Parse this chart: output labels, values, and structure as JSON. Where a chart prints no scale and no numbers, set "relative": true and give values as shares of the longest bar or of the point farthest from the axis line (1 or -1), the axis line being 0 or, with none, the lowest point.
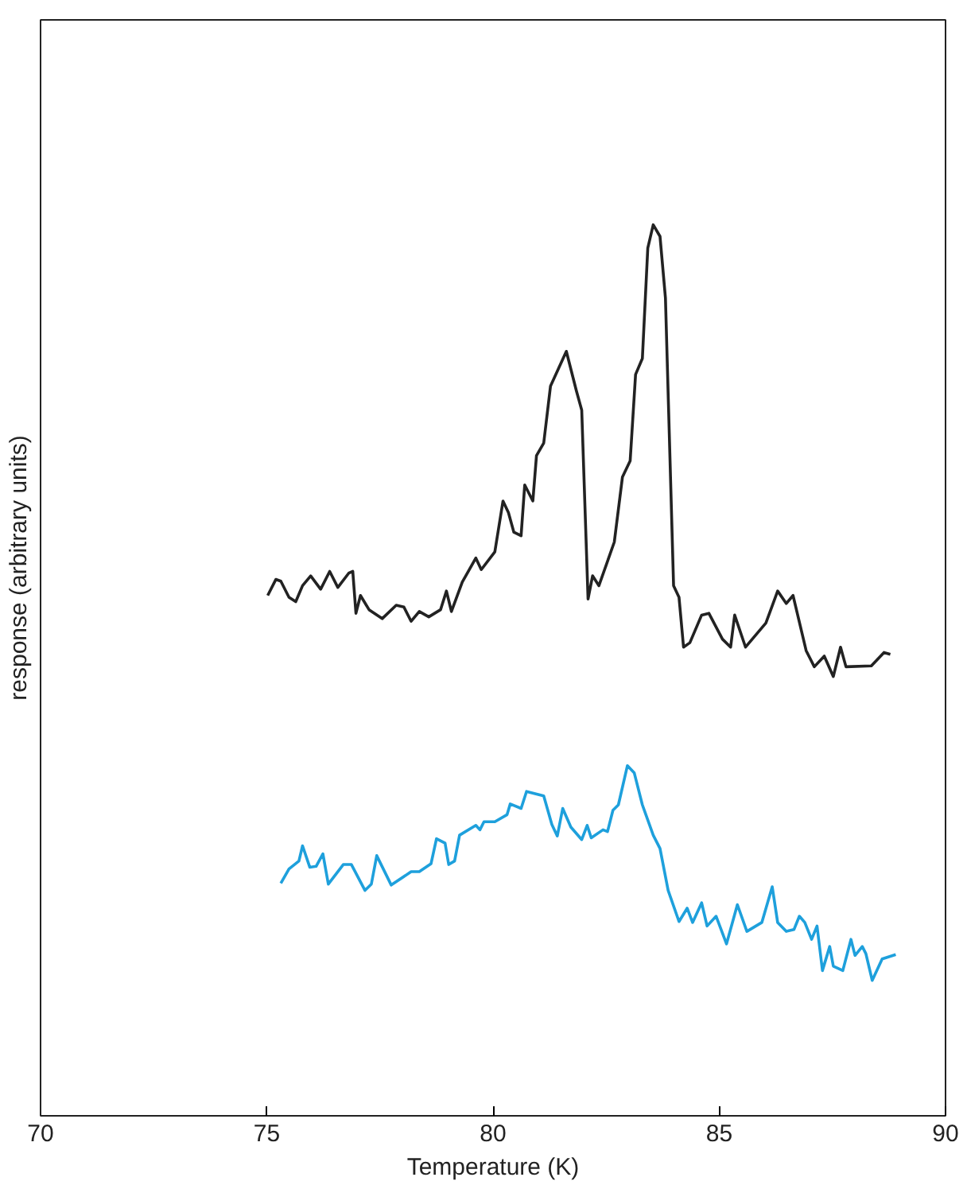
{
  "chart_data": {
    "type": "line",
    "relative": true,
    "xlabel": "Temperature (K)",
    "ylabel": "response (arbitrary units)",
    "xlim": [
      70,
      90
    ],
    "xticks": [
      70,
      75,
      80,
      85,
      90
    ],
    "grid": false,
    "marker": "none",
    "line_style": "solid",
    "series": [
      {
        "color": "#222222",
        "x": [
          75.02,
          75.2,
          75.31,
          75.49,
          75.64,
          75.79,
          75.97,
          76.19,
          76.39,
          76.57,
          76.81,
          76.9,
          76.97,
          77.07,
          77.26,
          77.55,
          77.86,
          78.03,
          78.19,
          78.37,
          78.58,
          78.84,
          78.97,
          79.08,
          79.32,
          79.62,
          79.74,
          80.04,
          80.22,
          80.34,
          80.46,
          80.62,
          80.7,
          80.88,
          80.96,
          81.12,
          81.27,
          81.62,
          81.84,
          81.96,
          82.1,
          82.2,
          82.34,
          82.68,
          82.86,
          83.03,
          83.15,
          83.3,
          83.42,
          83.54,
          83.69,
          83.81,
          83.99,
          84.11,
          84.21,
          84.35,
          84.61,
          84.77,
          85.07,
          85.25,
          85.34,
          85.58,
          86.03,
          86.29,
          86.48,
          86.63,
          86.92,
          87.1,
          87.32,
          87.52,
          87.68,
          87.8,
          88.36,
          88.64,
          88.78
        ],
        "values": [
          0.584,
          0.602,
          0.6,
          0.582,
          0.577,
          0.595,
          0.606,
          0.591,
          0.611,
          0.593,
          0.609,
          0.611,
          0.564,
          0.584,
          0.568,
          0.558,
          0.573,
          0.571,
          0.555,
          0.566,
          0.56,
          0.568,
          0.589,
          0.566,
          0.599,
          0.626,
          0.613,
          0.633,
          0.69,
          0.677,
          0.655,
          0.651,
          0.708,
          0.69,
          0.741,
          0.755,
          0.819,
          0.858,
          0.814,
          0.792,
          0.58,
          0.606,
          0.595,
          0.644,
          0.717,
          0.735,
          0.832,
          0.85,
          0.974,
          1,
          0.987,
          0.918,
          0.595,
          0.582,
          0.526,
          0.531,
          0.562,
          0.564,
          0.535,
          0.526,
          0.562,
          0.526,
          0.553,
          0.589,
          0.575,
          0.584,
          0.522,
          0.504,
          0.516,
          0.493,
          0.526,
          0.504,
          0.505,
          0.52,
          0.518
        ]
      },
      {
        "color": "#1ea0dc",
        "x": [
          75.31,
          75.49,
          75.71,
          75.79,
          75.95,
          76.09,
          76.24,
          76.36,
          76.69,
          76.87,
          77.17,
          77.31,
          77.43,
          77.75,
          78.19,
          78.37,
          78.63,
          78.75,
          78.94,
          79.02,
          79.15,
          79.26,
          79.62,
          79.71,
          79.8,
          80.04,
          80.31,
          80.38,
          80.62,
          80.74,
          81.12,
          81.3,
          81.42,
          81.54,
          81.72,
          81.96,
          82.08,
          82.17,
          82.43,
          82.53,
          82.65,
          82.77,
          82.97,
          83.12,
          83.3,
          83.54,
          83.69,
          83.87,
          84.11,
          84.29,
          84.41,
          84.61,
          84.73,
          84.93,
          85.16,
          85.4,
          85.61,
          85.94,
          86.17,
          86.29,
          86.48,
          86.65,
          86.77,
          86.89,
          87.04,
          87.16,
          87.28,
          87.44,
          87.52,
          87.73,
          87.91,
          88.0,
          88.16,
          88.24,
          88.38,
          88.6,
          88.9
        ],
        "values": [
          0.261,
          0.277,
          0.286,
          0.303,
          0.279,
          0.28,
          0.294,
          0.26,
          0.282,
          0.282,
          0.253,
          0.26,
          0.292,
          0.259,
          0.274,
          0.274,
          0.283,
          0.311,
          0.306,
          0.282,
          0.286,
          0.315,
          0.326,
          0.321,
          0.33,
          0.33,
          0.338,
          0.35,
          0.345,
          0.364,
          0.359,
          0.327,
          0.314,
          0.345,
          0.324,
          0.31,
          0.326,
          0.312,
          0.321,
          0.319,
          0.343,
          0.349,
          0.393,
          0.385,
          0.349,
          0.315,
          0.3,
          0.253,
          0.218,
          0.233,
          0.217,
          0.239,
          0.213,
          0.224,
          0.193,
          0.237,
          0.207,
          0.217,
          0.257,
          0.217,
          0.207,
          0.209,
          0.224,
          0.217,
          0.198,
          0.213,
          0.163,
          0.19,
          0.168,
          0.163,
          0.198,
          0.18,
          0.19,
          0.182,
          0.152,
          0.176,
          0.181
        ]
      }
    ]
  }
}
